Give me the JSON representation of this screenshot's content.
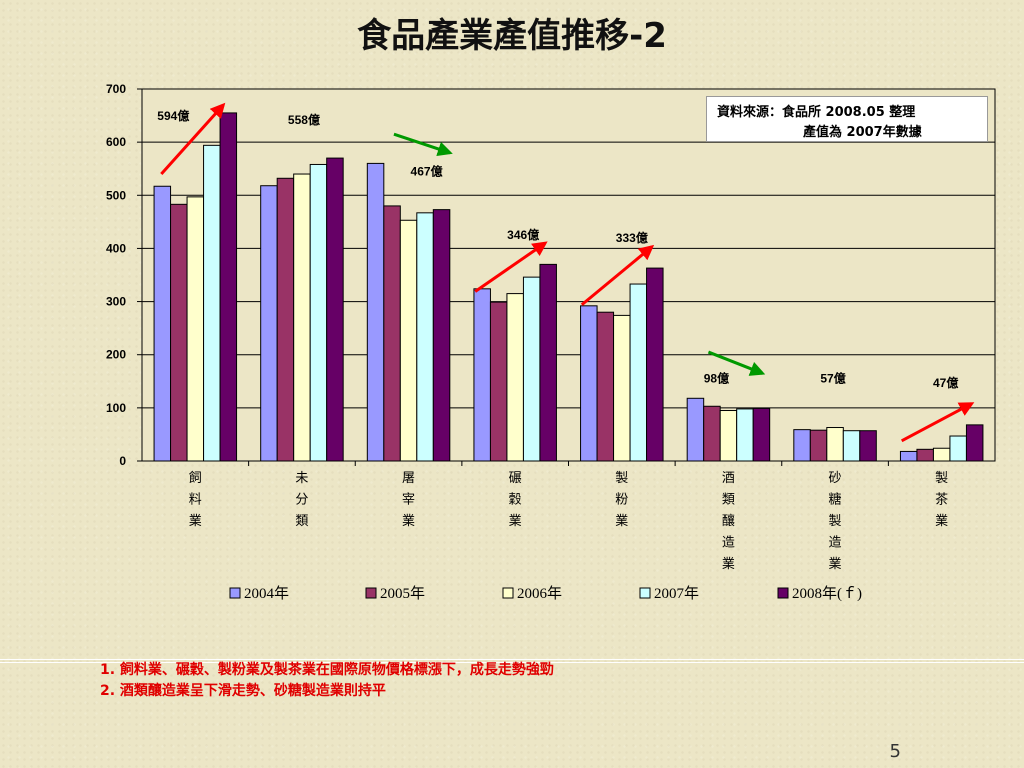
{
  "title": "食品產業產值推移-2",
  "source": {
    "label": "資料來源：",
    "text": "食品所 2008.05 整理",
    "line2": "產值為 2007年數據"
  },
  "notes": [
    "1. 飼料業、碾穀、製粉業及製茶業在國際原物價格標漲下，成長走勢強勁",
    "2. 酒類釀造業呈下滑走勢、砂糖製造業則持平"
  ],
  "page_number": "5",
  "chart_data": {
    "type": "bar",
    "categories": [
      "飼料業",
      "未分類",
      "屠宰業",
      "碾穀業",
      "製粉業",
      "酒類釀造業",
      "砂糖製造業",
      "製茶業"
    ],
    "category_labels": [
      [
        "飼",
        "料",
        "業"
      ],
      [
        "未",
        "分",
        "類"
      ],
      [
        "屠",
        "宰",
        "業"
      ],
      [
        "碾",
        "穀",
        "業"
      ],
      [
        "製",
        "粉",
        "業"
      ],
      [
        "酒",
        "類",
        "釀",
        "造",
        "業"
      ],
      [
        "砂",
        "糖",
        "製",
        "造",
        "業"
      ],
      [
        "製",
        "茶",
        "業"
      ]
    ],
    "series": [
      {
        "name": "2004年",
        "color": "#9999FF",
        "values": [
          517,
          518,
          560,
          324,
          292,
          118,
          59,
          18
        ]
      },
      {
        "name": "2005年",
        "color": "#993366",
        "values": [
          483,
          532,
          480,
          299,
          280,
          103,
          58,
          22
        ]
      },
      {
        "name": "2006年",
        "color": "#FFFFCC",
        "values": [
          497,
          540,
          453,
          315,
          274,
          95,
          63,
          24
        ]
      },
      {
        "name": "2007年",
        "color": "#CCFFFF",
        "values": [
          594,
          558,
          467,
          346,
          333,
          98,
          57,
          47
        ]
      },
      {
        "name": "2008年(ｆ)",
        "color": "#660066",
        "values": [
          655,
          570,
          473,
          370,
          363,
          99,
          57,
          68
        ]
      }
    ],
    "ylim": [
      0,
      700
    ],
    "yticks": [
      0,
      100,
      200,
      300,
      400,
      500,
      600,
      700
    ],
    "grid": true,
    "legend_position": "bottom",
    "annotations": [
      {
        "category": 0,
        "text": "594億",
        "trend": "up"
      },
      {
        "category": 1,
        "text": "558億",
        "trend": "down"
      },
      {
        "category": 2,
        "text": "467億",
        "trend": "none"
      },
      {
        "category": 3,
        "text": "346億",
        "trend": "up"
      },
      {
        "category": 4,
        "text": "333億",
        "trend": "up"
      },
      {
        "category": 5,
        "text": "98億",
        "trend": "down"
      },
      {
        "category": 6,
        "text": "57億",
        "trend": "none"
      },
      {
        "category": 7,
        "text": "47億",
        "trend": "up"
      }
    ],
    "trend_colors": {
      "up": "#FF0000",
      "down": "#009900"
    }
  }
}
